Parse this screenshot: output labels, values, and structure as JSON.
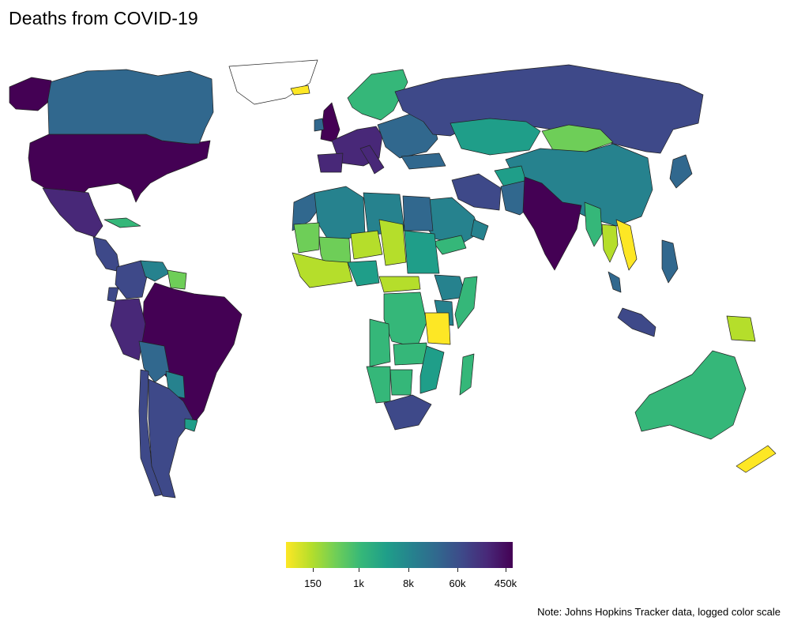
{
  "title": "Deaths from COVID-19",
  "caption": "Note: Johns Hopkins Tracker data, logged color scale",
  "legend": {
    "scale": "log",
    "palette": [
      "#fde725",
      "#b5de2b",
      "#6ece58",
      "#35b779",
      "#1f9e89",
      "#26828e",
      "#31688e",
      "#3e4989",
      "#482878",
      "#440154"
    ],
    "ticks": [
      {
        "label": "150",
        "value": 150
      },
      {
        "label": "1k",
        "value": 1000
      },
      {
        "label": "8k",
        "value": 8000
      },
      {
        "label": "60k",
        "value": 60000
      },
      {
        "label": "450k",
        "value": 450000
      }
    ]
  },
  "regions": [
    {
      "name": "United States",
      "color": "#440154"
    },
    {
      "name": "Canada",
      "color": "#31688e"
    },
    {
      "name": "Alaska",
      "color": "#440154"
    },
    {
      "name": "Greenland",
      "color": "#ffffff"
    },
    {
      "name": "Mexico",
      "color": "#482878"
    },
    {
      "name": "Central America",
      "color": "#3e4989"
    },
    {
      "name": "Cuba",
      "color": "#35b779"
    },
    {
      "name": "Colombia",
      "color": "#3e4989"
    },
    {
      "name": "Venezuela",
      "color": "#26828e"
    },
    {
      "name": "Guyana",
      "color": "#6ece58"
    },
    {
      "name": "Brazil",
      "color": "#440154"
    },
    {
      "name": "Peru",
      "color": "#482878"
    },
    {
      "name": "Ecuador",
      "color": "#3e4989"
    },
    {
      "name": "Bolivia",
      "color": "#31688e"
    },
    {
      "name": "Paraguay",
      "color": "#26828e"
    },
    {
      "name": "Chile",
      "color": "#3e4989"
    },
    {
      "name": "Argentina",
      "color": "#3e4989"
    },
    {
      "name": "Uruguay",
      "color": "#1f9e89"
    },
    {
      "name": "Iceland",
      "color": "#fde725"
    },
    {
      "name": "Scandinavia",
      "color": "#35b779"
    },
    {
      "name": "United Kingdom",
      "color": "#440154"
    },
    {
      "name": "Ireland",
      "color": "#31688e"
    },
    {
      "name": "Western Europe",
      "color": "#482878"
    },
    {
      "name": "Spain",
      "color": "#482878"
    },
    {
      "name": "Italy",
      "color": "#482878"
    },
    {
      "name": "Eastern Europe",
      "color": "#31688e"
    },
    {
      "name": "Russia",
      "color": "#3e4989"
    },
    {
      "name": "Kazakhstan",
      "color": "#1f9e89"
    },
    {
      "name": "Mongolia",
      "color": "#6ece58"
    },
    {
      "name": "China",
      "color": "#26828e"
    },
    {
      "name": "Japan",
      "color": "#31688e"
    },
    {
      "name": "Turkey",
      "color": "#31688e"
    },
    {
      "name": "Iran",
      "color": "#3e4989"
    },
    {
      "name": "Saudi Arabia",
      "color": "#26828e"
    },
    {
      "name": "Yemen",
      "color": "#35b779"
    },
    {
      "name": "Oman",
      "color": "#26828e"
    },
    {
      "name": "Afghanistan",
      "color": "#1f9e89"
    },
    {
      "name": "Pakistan",
      "color": "#31688e"
    },
    {
      "name": "India",
      "color": "#440154"
    },
    {
      "name": "Myanmar",
      "color": "#35b779"
    },
    {
      "name": "Thailand",
      "color": "#b5de2b"
    },
    {
      "name": "Vietnam",
      "color": "#fde725"
    },
    {
      "name": "Malaysia",
      "color": "#31688e"
    },
    {
      "name": "Indonesia",
      "color": "#3e4989"
    },
    {
      "name": "Philippines",
      "color": "#31688e"
    },
    {
      "name": "Papua New Guinea",
      "color": "#b5de2b"
    },
    {
      "name": "Australia",
      "color": "#35b779"
    },
    {
      "name": "New Zealand",
      "color": "#fde725"
    },
    {
      "name": "Morocco",
      "color": "#31688e"
    },
    {
      "name": "Algeria",
      "color": "#26828e"
    },
    {
      "name": "Libya",
      "color": "#26828e"
    },
    {
      "name": "Egypt",
      "color": "#31688e"
    },
    {
      "name": "Mauritania",
      "color": "#6ece58"
    },
    {
      "name": "Mali",
      "color": "#6ece58"
    },
    {
      "name": "Niger",
      "color": "#b5de2b"
    },
    {
      "name": "Chad",
      "color": "#b5de2b"
    },
    {
      "name": "Sudan",
      "color": "#1f9e89"
    },
    {
      "name": "Ethiopia",
      "color": "#26828e"
    },
    {
      "name": "Somalia",
      "color": "#35b779"
    },
    {
      "name": "West Africa",
      "color": "#b5de2b"
    },
    {
      "name": "Nigeria",
      "color": "#1f9e89"
    },
    {
      "name": "Central African Republic",
      "color": "#b5de2b"
    },
    {
      "name": "DR Congo",
      "color": "#35b779"
    },
    {
      "name": "Kenya",
      "color": "#26828e"
    },
    {
      "name": "Tanzania",
      "color": "#fde725"
    },
    {
      "name": "Angola",
      "color": "#35b779"
    },
    {
      "name": "Zambia",
      "color": "#35b779"
    },
    {
      "name": "Namibia",
      "color": "#35b779"
    },
    {
      "name": "Botswana",
      "color": "#35b779"
    },
    {
      "name": "Mozambique",
      "color": "#1f9e89"
    },
    {
      "name": "South Africa",
      "color": "#3e4989"
    },
    {
      "name": "Madagascar",
      "color": "#35b779"
    }
  ]
}
